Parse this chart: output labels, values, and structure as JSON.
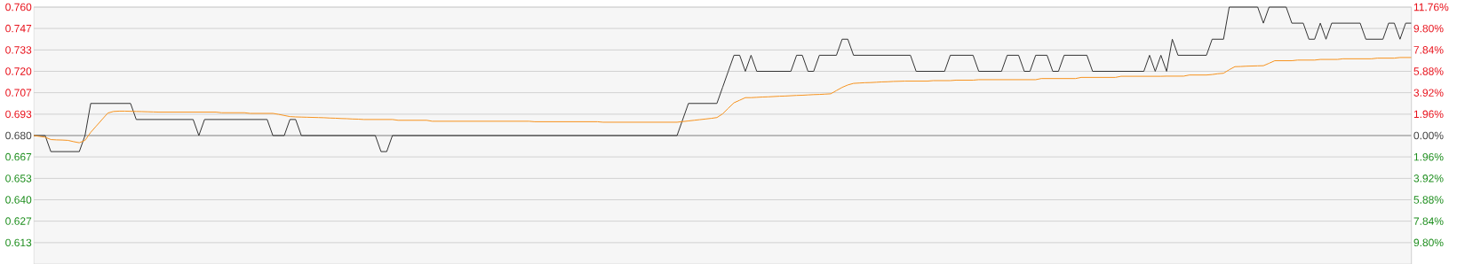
{
  "chart_data": {
    "type": "line",
    "categories": [
      null,
      null,
      null,
      null,
      null,
      null,
      null,
      null,
      null,
      null,
      null,
      null,
      null,
      null,
      null,
      null,
      null,
      null,
      null,
      null,
      null,
      null,
      null,
      null,
      null,
      null,
      null,
      null,
      null,
      null,
      null,
      null,
      null,
      null,
      null,
      null,
      null,
      null,
      null,
      null,
      null,
      null,
      null,
      null,
      null,
      null,
      null,
      null,
      null,
      null,
      null,
      null,
      null,
      null,
      null,
      null,
      null,
      null,
      null,
      null,
      null,
      null,
      null,
      null,
      null,
      null,
      null,
      null,
      null,
      null,
      null,
      null,
      null,
      null,
      null,
      null,
      null,
      null,
      null,
      null,
      null,
      null,
      null,
      null,
      null,
      null,
      null,
      null,
      null,
      null,
      null,
      null,
      null,
      null,
      null,
      null,
      null,
      null,
      null,
      null,
      null,
      null,
      null,
      null,
      null,
      null,
      null,
      null,
      null,
      null,
      null,
      null,
      null,
      null,
      null,
      null,
      null,
      null,
      null,
      null,
      null,
      null,
      null,
      null,
      null,
      null,
      null,
      null,
      null,
      null,
      null,
      null,
      null,
      null,
      null,
      null,
      null,
      null,
      null,
      null,
      null,
      null,
      null,
      null,
      null,
      null,
      null,
      null,
      null,
      null,
      null,
      null,
      null,
      null,
      null,
      null,
      null,
      null,
      null,
      null,
      null,
      null,
      null,
      null,
      null,
      null,
      null,
      null,
      null,
      null,
      null,
      null,
      null,
      null,
      null,
      null,
      null,
      null,
      null,
      null,
      null,
      null,
      null,
      null,
      null,
      null,
      null,
      null,
      null,
      null,
      null,
      null,
      null,
      null,
      null,
      null,
      null,
      null,
      null,
      null,
      null,
      null,
      null,
      null,
      null,
      null,
      null,
      null,
      null,
      null,
      null,
      null,
      null,
      null,
      null,
      null,
      null,
      null,
      null,
      null,
      null,
      null,
      null,
      null,
      null,
      null,
      null,
      null,
      null,
      null,
      null,
      null,
      null,
      null,
      null,
      null,
      null,
      null,
      null,
      null,
      null,
      null,
      null
    ],
    "ylim": [
      0.6,
      0.76
    ],
    "yticks": [
      {
        "value": 0.76,
        "label": "0.760"
      },
      {
        "value": 0.7467,
        "label": "0.747"
      },
      {
        "value": 0.7333,
        "label": "0.733"
      },
      {
        "value": 0.72,
        "label": "0.720"
      },
      {
        "value": 0.7067,
        "label": "0.707"
      },
      {
        "value": 0.6933,
        "label": "0.693"
      },
      {
        "value": 0.68,
        "label": "0.680"
      },
      {
        "value": 0.6667,
        "label": "0.667"
      },
      {
        "value": 0.6533,
        "label": "0.653"
      },
      {
        "value": 0.64,
        "label": "0.640"
      },
      {
        "value": 0.6267,
        "label": "0.627"
      },
      {
        "value": 0.6133,
        "label": "0.613"
      }
    ],
    "y2lim": [
      -11.76,
      11.76
    ],
    "y2ticks": [
      {
        "value": 11.76,
        "label": "11.76%"
      },
      {
        "value": 9.8,
        "label": "9.80%"
      },
      {
        "value": 7.84,
        "label": "7.84%"
      },
      {
        "value": 5.88,
        "label": "5.88%"
      },
      {
        "value": 3.92,
        "label": "3.92%"
      },
      {
        "value": 1.96,
        "label": "1.96%"
      },
      {
        "value": 0,
        "label": "0.00%"
      },
      {
        "value": -1.96,
        "label": "1.96%"
      },
      {
        "value": -3.92,
        "label": "3.92%"
      },
      {
        "value": -5.88,
        "label": "5.88%"
      },
      {
        "value": -7.84,
        "label": "7.84%"
      },
      {
        "value": -9.8,
        "label": "9.80%"
      }
    ],
    "grid": "y",
    "tick_labels": "y",
    "ref_lines": [
      {
        "axis": "y",
        "value": 0.68,
        "color": "#bbbbbb"
      }
    ],
    "series": [
      {
        "color": "#333333",
        "values": [
          0.68,
          0.68,
          0.68,
          0.67,
          0.67,
          0.67,
          0.67,
          0.67,
          0.67,
          0.68,
          0.7,
          0.7,
          0.7,
          0.7,
          0.7,
          0.7,
          0.7,
          0.7,
          0.69,
          0.69,
          0.69,
          0.69,
          0.69,
          0.69,
          0.69,
          0.69,
          0.69,
          0.69,
          0.69,
          0.68,
          0.69,
          0.69,
          0.69,
          0.69,
          0.69,
          0.69,
          0.69,
          0.69,
          0.69,
          0.69,
          0.69,
          0.69,
          0.68,
          0.68,
          0.68,
          0.69,
          0.69,
          0.68,
          0.68,
          0.68,
          0.68,
          0.68,
          0.68,
          0.68,
          0.68,
          0.68,
          0.68,
          0.68,
          0.68,
          0.68,
          0.68,
          0.67,
          0.67,
          0.68,
          0.68,
          0.68,
          0.68,
          0.68,
          0.68,
          0.68,
          0.68,
          0.68,
          0.68,
          0.68,
          0.68,
          0.68,
          0.68,
          0.68,
          0.68,
          0.68,
          0.68,
          0.68,
          0.68,
          0.68,
          0.68,
          0.68,
          0.68,
          0.68,
          0.68,
          0.68,
          0.68,
          0.68,
          0.68,
          0.68,
          0.68,
          0.68,
          0.68,
          0.68,
          0.68,
          0.68,
          0.68,
          0.68,
          0.68,
          0.68,
          0.68,
          0.68,
          0.68,
          0.68,
          0.68,
          0.68,
          0.68,
          0.68,
          0.68,
          0.68,
          0.69,
          0.7,
          0.7,
          0.7,
          0.7,
          0.7,
          0.7,
          0.71,
          0.72,
          0.73,
          0.73,
          0.72,
          0.73,
          0.72,
          0.72,
          0.72,
          0.72,
          0.72,
          0.72,
          0.72,
          0.73,
          0.73,
          0.72,
          0.72,
          0.73,
          0.73,
          0.73,
          0.73,
          0.74,
          0.74,
          0.73,
          0.73,
          0.73,
          0.73,
          0.73,
          0.73,
          0.73,
          0.73,
          0.73,
          0.73,
          0.73,
          0.72,
          0.72,
          0.72,
          0.72,
          0.72,
          0.72,
          0.73,
          0.73,
          0.73,
          0.73,
          0.73,
          0.72,
          0.72,
          0.72,
          0.72,
          0.72,
          0.73,
          0.73,
          0.73,
          0.72,
          0.72,
          0.73,
          0.73,
          0.73,
          0.72,
          0.72,
          0.73,
          0.73,
          0.73,
          0.73,
          0.73,
          0.72,
          0.72,
          0.72,
          0.72,
          0.72,
          0.72,
          0.72,
          0.72,
          0.72,
          0.72,
          0.73,
          0.72,
          0.73,
          0.72,
          0.74,
          0.73,
          0.73,
          0.73,
          0.73,
          0.73,
          0.73,
          0.74,
          0.74,
          0.74,
          0.76,
          0.76,
          0.76,
          0.76,
          0.76,
          0.76,
          0.75,
          0.76,
          0.76,
          0.76,
          0.76,
          0.75,
          0.75,
          0.75,
          0.74,
          0.74,
          0.75,
          0.74,
          0.75,
          0.75,
          0.75,
          0.75,
          0.75,
          0.75,
          0.74,
          0.74,
          0.74,
          0.74,
          0.75,
          0.75,
          0.74,
          0.75,
          0.75
        ]
      },
      {
        "color": "#f7931e",
        "values": [
          0.68,
          0.6795,
          0.679,
          0.6775,
          0.6773,
          0.6772,
          0.677,
          0.6762,
          0.6755,
          0.677,
          0.682,
          0.686,
          0.69,
          0.694,
          0.695,
          0.6952,
          0.6952,
          0.6951,
          0.695,
          0.6949,
          0.6948,
          0.6947,
          0.6946,
          0.6946,
          0.6946,
          0.6946,
          0.6946,
          0.6946,
          0.6946,
          0.6946,
          0.6946,
          0.6946,
          0.6946,
          0.6942,
          0.6942,
          0.6942,
          0.6942,
          0.6942,
          0.6938,
          0.6938,
          0.6938,
          0.6938,
          0.6938,
          0.6932,
          0.6925,
          0.6918,
          0.6916,
          0.6915,
          0.6914,
          0.6913,
          0.6912,
          0.6911,
          0.6909,
          0.6908,
          0.6906,
          0.6905,
          0.6903,
          0.6902,
          0.69,
          0.69,
          0.69,
          0.69,
          0.69,
          0.69,
          0.6895,
          0.6895,
          0.6895,
          0.6895,
          0.6895,
          0.6895,
          0.6889,
          0.6889,
          0.6889,
          0.6889,
          0.6889,
          0.6889,
          0.6889,
          0.6889,
          0.6889,
          0.6889,
          0.6889,
          0.6889,
          0.6889,
          0.6889,
          0.6889,
          0.6889,
          0.6889,
          0.6889,
          0.6886,
          0.6886,
          0.6886,
          0.6886,
          0.6886,
          0.6886,
          0.6886,
          0.6886,
          0.6886,
          0.6886,
          0.6886,
          0.6886,
          0.6883,
          0.6883,
          0.6883,
          0.6883,
          0.6883,
          0.6883,
          0.6883,
          0.6883,
          0.6883,
          0.6883,
          0.6883,
          0.6883,
          0.6883,
          0.6883,
          0.6887,
          0.6891,
          0.6895,
          0.6899,
          0.6903,
          0.6907,
          0.6912,
          0.6935,
          0.697,
          0.7004,
          0.702,
          0.7036,
          0.7036,
          0.7038,
          0.704,
          0.7041,
          0.7043,
          0.7045,
          0.7046,
          0.7048,
          0.705,
          0.7051,
          0.7053,
          0.7055,
          0.7056,
          0.7058,
          0.706,
          0.708,
          0.71,
          0.7115,
          0.7125,
          0.7127,
          0.7129,
          0.713,
          0.7132,
          0.7134,
          0.7135,
          0.7137,
          0.7138,
          0.7139,
          0.7139,
          0.7139,
          0.7139,
          0.7139,
          0.7142,
          0.7142,
          0.7142,
          0.7142,
          0.7145,
          0.7145,
          0.7145,
          0.7145,
          0.7148,
          0.7148,
          0.7148,
          0.7148,
          0.7148,
          0.7148,
          0.7148,
          0.7148,
          0.7148,
          0.7148,
          0.7148,
          0.7155,
          0.7155,
          0.7155,
          0.7155,
          0.7155,
          0.7155,
          0.7155,
          0.7162,
          0.7162,
          0.7162,
          0.7162,
          0.7162,
          0.7162,
          0.7162,
          0.7169,
          0.7169,
          0.7169,
          0.7169,
          0.7169,
          0.7169,
          0.7169,
          0.7169,
          0.717,
          0.717,
          0.717,
          0.717,
          0.7177,
          0.7177,
          0.7177,
          0.7177,
          0.718,
          0.7185,
          0.7188,
          0.721,
          0.7229,
          0.723,
          0.7232,
          0.7233,
          0.7234,
          0.7235,
          0.725,
          0.7266,
          0.7266,
          0.7266,
          0.7266,
          0.727,
          0.727,
          0.727,
          0.727,
          0.7274,
          0.7274,
          0.7274,
          0.7274,
          0.7278,
          0.7278,
          0.7278,
          0.7278,
          0.7278,
          0.7278,
          0.7282,
          0.7282,
          0.7282,
          0.7282,
          0.7286,
          0.7286,
          0.7286
        ]
      }
    ]
  }
}
